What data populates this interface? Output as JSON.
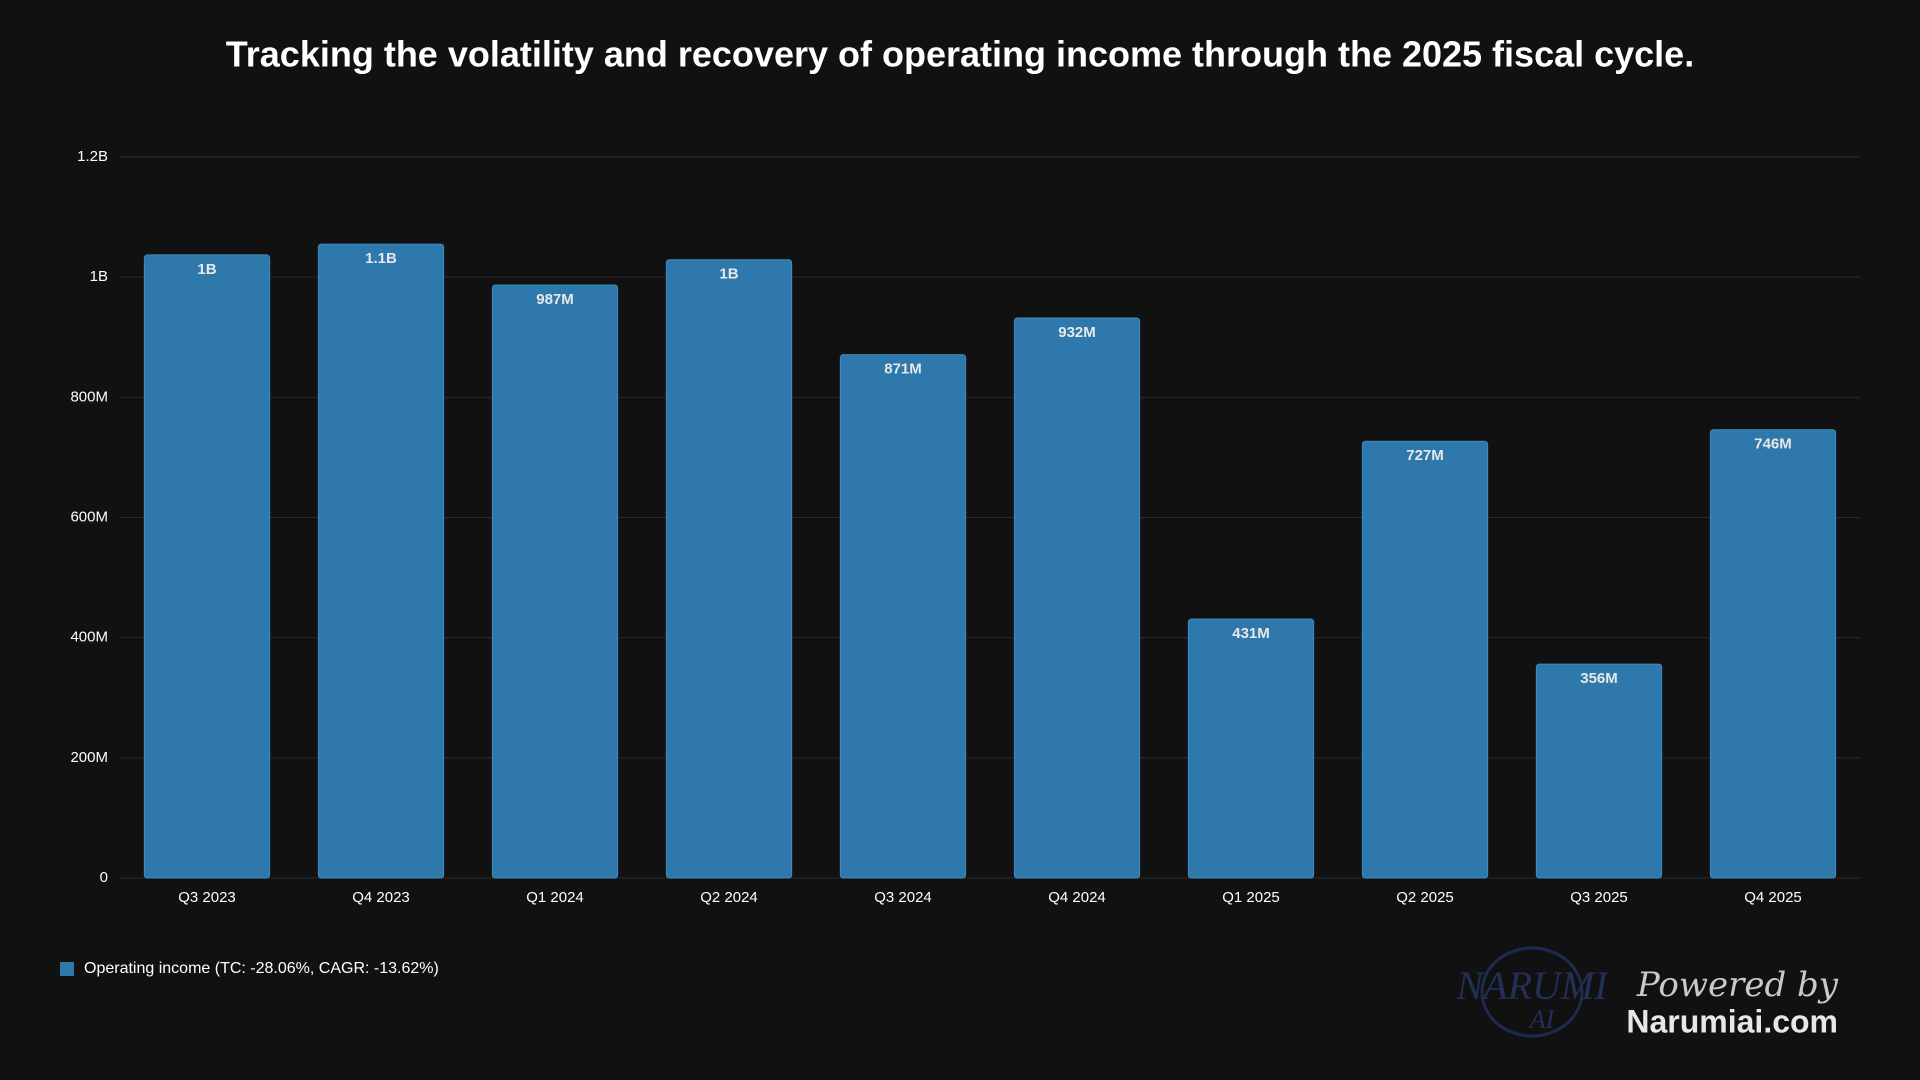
{
  "chart_data": {
    "type": "bar",
    "title": "Tracking the volatility and recovery of operating income through the 2025 fiscal cycle.",
    "categories": [
      "Q3 2023",
      "Q4 2023",
      "Q1 2024",
      "Q2 2024",
      "Q3 2024",
      "Q4 2024",
      "Q1 2025",
      "Q2 2025",
      "Q3 2025",
      "Q4 2025"
    ],
    "series": [
      {
        "name": "Operating income (TC: -28.06%, CAGR: -13.62%)",
        "color": "#2e78ab",
        "values": [
          1037000000,
          1055000000,
          987000000,
          1029000000,
          871000000,
          932000000,
          431000000,
          727000000,
          356000000,
          746000000
        ],
        "value_labels": [
          "1B",
          "1.1B",
          "987M",
          "1B",
          "871M",
          "932M",
          "431M",
          "727M",
          "356M",
          "746M"
        ]
      }
    ],
    "ylim": [
      0,
      1200000000
    ],
    "yticks": [
      0,
      {
        "value": 200000000,
        "label": "200M"
      },
      {
        "value": 400000000,
        "label": "400M"
      },
      {
        "value": 600000000,
        "label": "600M"
      },
      {
        "value": 800000000,
        "label": "800M"
      },
      {
        "value": 1000000000,
        "label": "1B"
      },
      {
        "value": 1200000000,
        "label": "1.2B"
      }
    ],
    "grid": true,
    "legend": "bottom-left"
  },
  "footer": {
    "logo": [
      "NARUMI",
      "AI"
    ],
    "powered_by": "Powered by",
    "site": "Narumiai.com"
  }
}
